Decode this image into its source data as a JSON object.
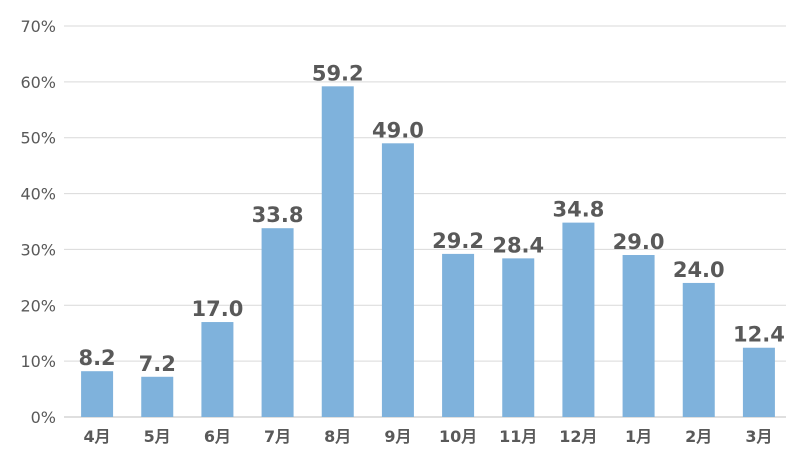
{
  "chart_data": {
    "type": "bar",
    "title": "",
    "xlabel": "",
    "ylabel": "",
    "categories": [
      "4月",
      "5月",
      "6月",
      "7月",
      "8月",
      "9月",
      "10月",
      "11月",
      "12月",
      "1月",
      "2月",
      "3月"
    ],
    "values": [
      8.2,
      7.2,
      17.0,
      33.8,
      59.2,
      49.0,
      29.2,
      28.4,
      34.8,
      29.0,
      24.0,
      12.4
    ],
    "value_labels": [
      "8.2",
      "7.2",
      "17.0",
      "33.8",
      "59.2",
      "49.0",
      "29.2",
      "28.4",
      "34.8",
      "29.0",
      "24.0",
      "12.4"
    ],
    "ylim": [
      0,
      70
    ],
    "yticks": [
      0,
      10,
      20,
      30,
      40,
      50,
      60,
      70
    ],
    "ytick_labels": [
      "0%",
      "10%",
      "20%",
      "30%",
      "40%",
      "50%",
      "60%",
      "70%"
    ],
    "grid": true,
    "legend": "none",
    "colors": {
      "bar": "#7fb2dc",
      "grid": "#d9d9d9",
      "text": "#595959"
    }
  }
}
